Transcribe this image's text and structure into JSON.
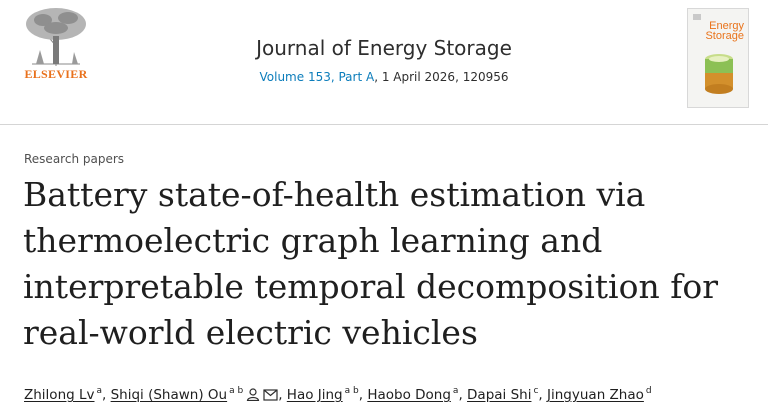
{
  "header": {
    "publisher": "ELSEVIER",
    "journal_title": "Journal of Energy Storage",
    "volume_link": "Volume 153, Part A",
    "volume_rest": ", 1 April 2026, 120956",
    "cover_title_line1": "Energy",
    "cover_title_line2": "Storage"
  },
  "article": {
    "section": "Research papers",
    "title_lines": [
      "Battery state-of-health estimation via",
      "thermoelectric graph learning and",
      "interpretable temporal decomposition for",
      "real-world electric vehicles"
    ]
  },
  "authors": [
    {
      "name": "Zhilong Lv",
      "aff": "a"
    },
    {
      "name": "Shiqi (Shawn) Ou",
      "aff": "a b"
    },
    {
      "name": "Hao Jing",
      "aff": "a b"
    },
    {
      "name": "Haobo Dong",
      "aff": "a"
    },
    {
      "name": "Dapai Shi",
      "aff": "c"
    },
    {
      "name": "Jingyuan Zhao",
      "aff": "d"
    }
  ],
  "colors": {
    "accent_link": "#0c7dbb",
    "publisher_orange": "#e9711c"
  },
  "icons": [
    "elsevier-tree-logo",
    "person-icon",
    "envelope-icon",
    "journal-cover"
  ]
}
